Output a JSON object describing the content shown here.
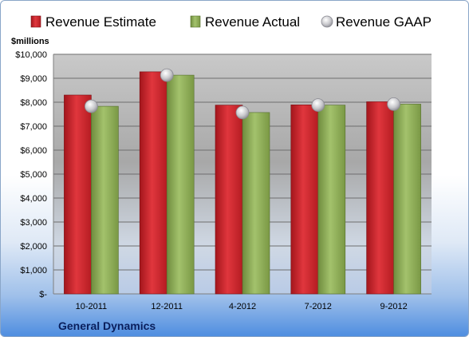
{
  "chart_data": {
    "type": "bar",
    "title": "",
    "unit_label": "$millions",
    "company": "General Dynamics",
    "categories": [
      "10-2011",
      "12-2011",
      "4-2012",
      "7-2012",
      "9-2012"
    ],
    "series": [
      {
        "name": "Revenue Estimate",
        "kind": "bar",
        "color": "#cc2229",
        "values": [
          8300,
          9270,
          7880,
          7890,
          8020
        ]
      },
      {
        "name": "Revenue Actual",
        "kind": "bar",
        "color": "#8cab58",
        "values": [
          7830,
          9130,
          7570,
          7880,
          7920
        ]
      },
      {
        "name": "Revenue GAAP",
        "kind": "marker",
        "color": "#b8b8c0",
        "values": [
          7830,
          9130,
          7570,
          7880,
          7920
        ]
      }
    ],
    "y_ticks": [
      "$-",
      "$1,000",
      "$2,000",
      "$3,000",
      "$4,000",
      "$5,000",
      "$6,000",
      "$7,000",
      "$8,000",
      "$9,000",
      "$10,000"
    ],
    "ylim": [
      0,
      10000
    ],
    "grid": true,
    "legend_position": "top"
  }
}
